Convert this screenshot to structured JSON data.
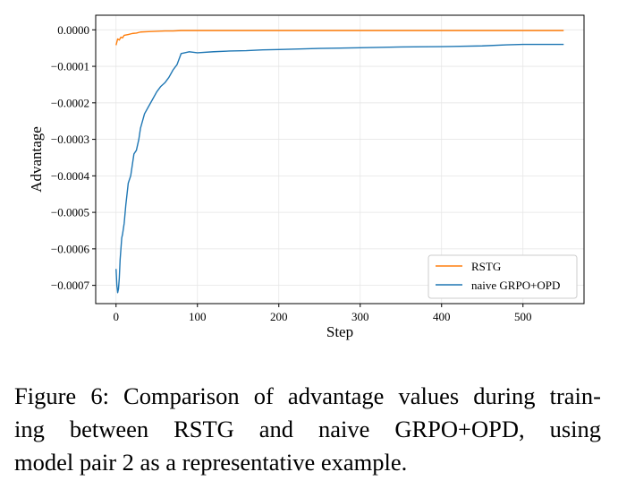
{
  "chart_data": {
    "type": "line",
    "xlabel": "Step",
    "ylabel": "Advantage",
    "xlim": [
      -25,
      575
    ],
    "ylim": [
      -0.00075,
      4e-05
    ],
    "xticks": [
      0,
      100,
      200,
      300,
      400,
      500
    ],
    "xtick_labels": [
      "0",
      "100",
      "200",
      "300",
      "400",
      "500"
    ],
    "yticks": [
      0.0,
      -0.0001,
      -0.0002,
      -0.0003,
      -0.0004,
      -0.0005,
      -0.0006,
      -0.0007
    ],
    "ytick_labels": [
      "0.0000",
      "−0.0001",
      "−0.0002",
      "−0.0003",
      "−0.0004",
      "−0.0005",
      "−0.0006",
      "−0.0007"
    ],
    "grid": true,
    "legend_position": "lower-right",
    "series": [
      {
        "name": "RSTG",
        "color": "#ff7f0e",
        "x": [
          0,
          2,
          4,
          6,
          8,
          10,
          15,
          20,
          25,
          30,
          40,
          50,
          60,
          70,
          80,
          100,
          150,
          200,
          250,
          300,
          350,
          400,
          450,
          500,
          550
        ],
        "y": [
          -4.2e-05,
          -2.5e-05,
          -2.8e-05,
          -2e-05,
          -2.2e-05,
          -1.5e-05,
          -1.3e-05,
          -1e-05,
          -9e-06,
          -6e-06,
          -5e-06,
          -4e-06,
          -3e-06,
          -3e-06,
          -2e-06,
          -2e-06,
          -2e-06,
          -2e-06,
          -2e-06,
          -2e-06,
          -2e-06,
          -2e-06,
          -2e-06,
          -2e-06,
          -2e-06
        ]
      },
      {
        "name": "naive GRPO+OPD",
        "color": "#1f77b4",
        "x": [
          0,
          1,
          2,
          3,
          4,
          5,
          6,
          7,
          8,
          10,
          12,
          15,
          18,
          20,
          22,
          25,
          28,
          30,
          35,
          40,
          45,
          50,
          55,
          60,
          65,
          70,
          75,
          80,
          90,
          100,
          120,
          140,
          160,
          180,
          200,
          250,
          300,
          350,
          400,
          450,
          480,
          500,
          520,
          550
        ],
        "y": [
          -0.000655,
          -0.0007,
          -0.00072,
          -0.00071,
          -0.00068,
          -0.00063,
          -0.0006,
          -0.00057,
          -0.00056,
          -0.00053,
          -0.00048,
          -0.00042,
          -0.0004,
          -0.00037,
          -0.00034,
          -0.00033,
          -0.0003,
          -0.00027,
          -0.00023,
          -0.00021,
          -0.00019,
          -0.00017,
          -0.000155,
          -0.000145,
          -0.00013,
          -0.00011,
          -9.5e-05,
          -6.5e-05,
          -6e-05,
          -6.3e-05,
          -6e-05,
          -5.8e-05,
          -5.7e-05,
          -5.5e-05,
          -5.4e-05,
          -5.1e-05,
          -4.9e-05,
          -4.7e-05,
          -4.6e-05,
          -4.4e-05,
          -4.1e-05,
          -4e-05,
          -4e-05,
          -4e-05
        ]
      }
    ]
  },
  "caption": {
    "line1": "Figure 6: Comparison of advantage values during train-",
    "line2": "ing between RSTG and naive GRPO+OPD, using",
    "line3": "model pair 2 as a representative example."
  }
}
